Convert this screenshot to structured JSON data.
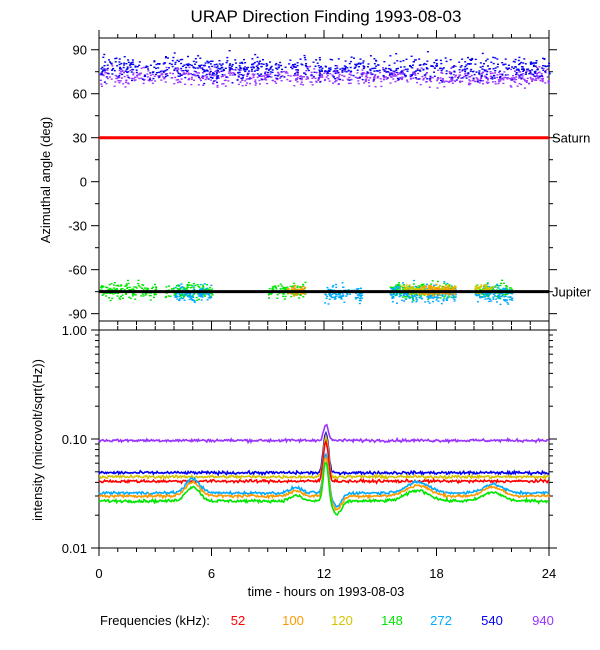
{
  "title": "URAP Direction Finding  1993-08-03",
  "xlabel": "time - hours on 1993-08-03",
  "freq_label": "Frequencies (kHz):",
  "frequencies": [
    {
      "value": "52",
      "color": "#ff0000"
    },
    {
      "value": "100",
      "color": "#ff9900"
    },
    {
      "value": "120",
      "color": "#d4c400"
    },
    {
      "value": "148",
      "color": "#00e600"
    },
    {
      "value": "272",
      "color": "#00aaff"
    },
    {
      "value": "540",
      "color": "#0000ee"
    },
    {
      "value": "940",
      "color": "#9933ff"
    }
  ],
  "chart_data": [
    {
      "type": "scatter",
      "title": "URAP Direction Finding  1993-08-03",
      "ylabel": "Azimuthal angle (deg)",
      "xlabel": "time - hours on 1993-08-03",
      "xlim": [
        0,
        24
      ],
      "ylim": [
        -95,
        98
      ],
      "xticks": [
        "0",
        "6",
        "12",
        "18",
        "24"
      ],
      "yticks": [
        90,
        60,
        30,
        0,
        -30,
        -60,
        -90
      ],
      "reference_lines": [
        {
          "name": "Saturn",
          "value": 30,
          "color": "#ff0000"
        },
        {
          "name": "Jupiter",
          "value": -75,
          "color": "#000000"
        }
      ],
      "series": [
        {
          "name": "940 kHz",
          "color": "#9933ff",
          "mean": 72,
          "spread": 6,
          "x_range": [
            0,
            24
          ]
        },
        {
          "name": "540 kHz",
          "color": "#0000ee",
          "mean": 78,
          "spread": 8,
          "x_range": [
            0,
            24
          ]
        },
        {
          "name": "148 kHz",
          "color": "#00e600",
          "mean": -74,
          "spread": 5,
          "clusters": [
            [
              0,
              3
            ],
            [
              3.5,
              6
            ],
            [
              9,
              11
            ],
            [
              15.5,
              19
            ],
            [
              20,
              22
            ]
          ]
        },
        {
          "name": "272 kHz",
          "color": "#00aaff",
          "mean": -76,
          "spread": 6,
          "clusters": [
            [
              4,
              6
            ],
            [
              12,
              14
            ],
            [
              15.5,
              19
            ],
            [
              20,
              22
            ]
          ]
        },
        {
          "name": "120 kHz",
          "color": "#d4c400",
          "mean": -73,
          "spread": 3,
          "clusters": [
            [
              16,
              19
            ],
            [
              20,
              21
            ]
          ]
        },
        {
          "name": "100 kHz",
          "color": "#ff9900",
          "mean": -74,
          "spread": 3,
          "clusters": [
            [
              10,
              11
            ],
            [
              17,
              19
            ]
          ]
        }
      ]
    },
    {
      "type": "line",
      "ylabel": "intensity (microvolt/sqrt(Hz))",
      "xlabel": "time - hours on 1993-08-03",
      "xlim": [
        0,
        24
      ],
      "yscale": "log",
      "ylim": [
        0.01,
        1.0
      ],
      "xticks": [
        "0",
        "6",
        "12",
        "18",
        "24"
      ],
      "yticks": [
        "1.00",
        "0.10",
        "0.01"
      ],
      "series": [
        {
          "name": "940",
          "color": "#9933ff",
          "baseline": 0.097
        },
        {
          "name": "540",
          "color": "#0000ee",
          "baseline": 0.049
        },
        {
          "name": "120",
          "color": "#d4c400",
          "baseline": 0.045
        },
        {
          "name": "52",
          "color": "#ff0000",
          "baseline": 0.041
        },
        {
          "name": "272",
          "color": "#00aaff",
          "baseline": 0.032
        },
        {
          "name": "100",
          "color": "#ff9900",
          "baseline": 0.03
        },
        {
          "name": "148",
          "color": "#00e600",
          "baseline": 0.027
        }
      ],
      "features": [
        {
          "x": 5,
          "note": "small rise"
        },
        {
          "x": 12,
          "peak": 0.13,
          "note": "burst"
        },
        {
          "x": 17,
          "note": "small rise"
        },
        {
          "x": 21,
          "note": "small rise"
        }
      ]
    }
  ]
}
